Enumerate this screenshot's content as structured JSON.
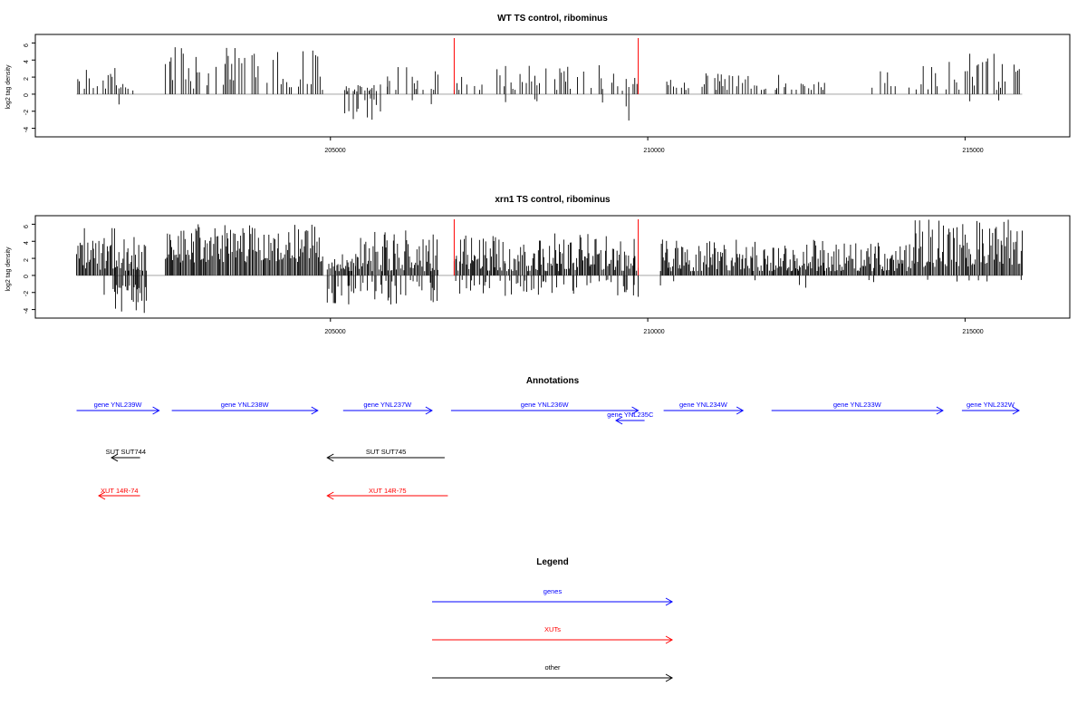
{
  "chart_data": [
    {
      "type": "bar",
      "title": "WT TS control, ribominus",
      "xlabel": "",
      "ylabel": "log2 tag density",
      "xlim": [
        200350,
        216650
      ],
      "ylim": [
        -5,
        7
      ],
      "xticks": [
        205000,
        210000,
        215000
      ],
      "yticks": [
        -4,
        -2,
        0,
        2,
        4,
        6
      ],
      "grid": false,
      "baseline_range": [
        201000,
        215900
      ],
      "markers": [
        {
          "x": 206950,
          "color": "#ff0000"
        },
        {
          "x": 209850,
          "color": "#ff0000"
        }
      ],
      "segments": [
        {
          "start": 201000,
          "end": 201350,
          "min": 0.6,
          "max": 3.0,
          "neg": 0.05,
          "nmin": 0.5,
          "nmax": 1.2
        },
        {
          "start": 201350,
          "end": 201700,
          "min": 0.5,
          "max": 3.4,
          "neg": 0.25,
          "nmin": 0.5,
          "nmax": 3.0
        },
        {
          "start": 201700,
          "end": 201950,
          "min": 0.4,
          "max": 1.5,
          "neg": 0.05,
          "nmin": 0.5,
          "nmax": 1.0
        },
        {
          "start": 202400,
          "end": 204900,
          "min": 0.5,
          "max": 5.5,
          "neg": 0.0,
          "nmin": 0,
          "nmax": 0
        },
        {
          "start": 205150,
          "end": 205900,
          "min": 0.3,
          "max": 1.2,
          "neg": 0.55,
          "nmin": 0.5,
          "nmax": 3.0
        },
        {
          "start": 205900,
          "end": 206700,
          "min": 0.5,
          "max": 3.2,
          "neg": 0.1,
          "nmin": 0.5,
          "nmax": 1.5
        },
        {
          "start": 206950,
          "end": 207400,
          "min": 0.5,
          "max": 2.5,
          "neg": 0.1,
          "nmin": 0.5,
          "nmax": 1.0
        },
        {
          "start": 207600,
          "end": 209200,
          "min": 0.5,
          "max": 4.0,
          "neg": 0.2,
          "nmin": 0.5,
          "nmax": 1.2
        },
        {
          "start": 209200,
          "end": 209850,
          "min": 0.4,
          "max": 3.5,
          "neg": 0.35,
          "nmin": 0.5,
          "nmax": 3.1
        },
        {
          "start": 210300,
          "end": 212800,
          "min": 0.5,
          "max": 2.5,
          "neg": 0.0,
          "nmin": 0,
          "nmax": 0
        },
        {
          "start": 213500,
          "end": 214200,
          "min": 0.5,
          "max": 3.6,
          "neg": 0.0,
          "nmin": 0,
          "nmax": 0
        },
        {
          "start": 214200,
          "end": 214600,
          "min": 0.5,
          "max": 3.5,
          "neg": 0.15,
          "nmin": 0.5,
          "nmax": 1.8
        },
        {
          "start": 214700,
          "end": 215900,
          "min": 0.5,
          "max": 5.3,
          "neg": 0.08,
          "nmin": 0.5,
          "nmax": 1.0
        }
      ]
    },
    {
      "type": "bar",
      "title": "xrn1 TS control, ribominus",
      "xlabel": "",
      "ylabel": "log2 tag density",
      "xlim": [
        200350,
        216650
      ],
      "ylim": [
        -5,
        7
      ],
      "xticks": [
        205000,
        210000,
        215000
      ],
      "yticks": [
        -4,
        -2,
        0,
        2,
        4,
        6
      ],
      "grid": false,
      "baseline_range": [
        201000,
        215900
      ],
      "markers": [
        {
          "x": 206950,
          "color": "#ff0000"
        },
        {
          "x": 209850,
          "color": "#ff0000"
        }
      ],
      "segments": [
        {
          "start": 201000,
          "end": 201600,
          "min": 0.6,
          "max": 5.6,
          "neg": 0.15,
          "nmin": 0.5,
          "nmax": 2.5
        },
        {
          "start": 201600,
          "end": 202100,
          "min": 0.5,
          "max": 5.0,
          "neg": 0.8,
          "nmin": 1.0,
          "nmax": 4.6
        },
        {
          "start": 202400,
          "end": 204900,
          "min": 1.5,
          "max": 6.0,
          "neg": 0.0,
          "nmin": 0,
          "nmax": 0
        },
        {
          "start": 204950,
          "end": 205400,
          "min": 0.5,
          "max": 2.5,
          "neg": 0.6,
          "nmin": 1.0,
          "nmax": 3.5
        },
        {
          "start": 205400,
          "end": 206700,
          "min": 0.5,
          "max": 5.3,
          "neg": 0.45,
          "nmin": 0.5,
          "nmax": 3.6
        },
        {
          "start": 206950,
          "end": 207600,
          "min": 0.5,
          "max": 4.8,
          "neg": 0.3,
          "nmin": 0.5,
          "nmax": 2.2
        },
        {
          "start": 207600,
          "end": 209850,
          "min": 0.5,
          "max": 5.0,
          "neg": 0.3,
          "nmin": 0.5,
          "nmax": 2.6
        },
        {
          "start": 210200,
          "end": 214200,
          "min": 0.5,
          "max": 4.2,
          "neg": 0.05,
          "nmin": 0.5,
          "nmax": 1.5
        },
        {
          "start": 214200,
          "end": 215900,
          "min": 1.0,
          "max": 6.8,
          "neg": 0.05,
          "nmin": 0.5,
          "nmax": 1.0
        }
      ]
    }
  ],
  "annotations": {
    "title": "Annotations",
    "items": [
      {
        "label": "gene YNL239W",
        "start": 201000,
        "end": 202300,
        "dir": "right",
        "row": 0,
        "color": "#0000ff"
      },
      {
        "label": "gene YNL238W",
        "start": 202500,
        "end": 204800,
        "dir": "right",
        "row": 0,
        "color": "#0000ff"
      },
      {
        "label": "gene YNL237W",
        "start": 205200,
        "end": 206600,
        "dir": "right",
        "row": 0,
        "color": "#0000ff"
      },
      {
        "label": "gene YNL236W",
        "start": 206900,
        "end": 209850,
        "dir": "right",
        "row": 0,
        "color": "#0000ff"
      },
      {
        "label": "gene YNL235C",
        "start": 209500,
        "end": 209950,
        "dir": "left",
        "row": 1,
        "color": "#0000ff"
      },
      {
        "label": "gene YNL234W",
        "start": 210250,
        "end": 211500,
        "dir": "right",
        "row": 0,
        "color": "#0000ff"
      },
      {
        "label": "gene YNL233W",
        "start": 211950,
        "end": 214650,
        "dir": "right",
        "row": 0,
        "color": "#0000ff"
      },
      {
        "label": "gene YNL232W",
        "start": 214950,
        "end": 215850,
        "dir": "right",
        "row": 0,
        "color": "#0000ff"
      },
      {
        "label": "SUT SUT744",
        "start": 201550,
        "end": 202000,
        "dir": "left",
        "row": 2,
        "color": "#000000"
      },
      {
        "label": "SUT SUT745",
        "start": 204950,
        "end": 206800,
        "dir": "left",
        "row": 2,
        "color": "#000000"
      },
      {
        "label": "XUT 14R-74",
        "start": 201350,
        "end": 202000,
        "dir": "left",
        "row": 3,
        "color": "#ff0000"
      },
      {
        "label": "XUT 14R-75",
        "start": 204950,
        "end": 206850,
        "dir": "left",
        "row": 3,
        "color": "#ff0000"
      }
    ]
  },
  "legend": {
    "title": "Legend",
    "items": [
      {
        "label": "genes",
        "color": "#0000ff"
      },
      {
        "label": "XUTs",
        "color": "#ff0000"
      },
      {
        "label": "other",
        "color": "#000000"
      }
    ]
  }
}
